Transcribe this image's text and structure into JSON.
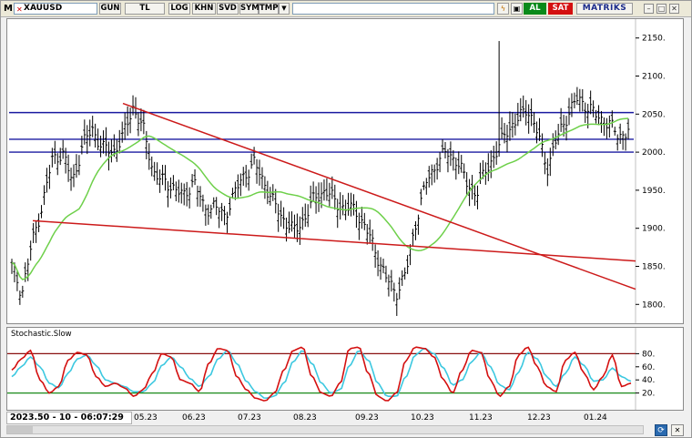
{
  "toolbar": {
    "m_label": "M",
    "symbol": "XAUUSD",
    "buttons": [
      "GUN",
      "TL",
      "LOG",
      "KHN",
      "SVD",
      "SYM",
      "TMP"
    ],
    "al_label": "AL",
    "sat_label": "SAT",
    "brand": "MATRIKS"
  },
  "main_axis": {
    "ticks": [
      2150,
      2100,
      2050,
      2000,
      1950,
      1900,
      1850,
      1800
    ]
  },
  "stoch": {
    "title": "Stochastic.Slow",
    "ticks": [
      80,
      60,
      40,
      20
    ]
  },
  "status": {
    "timestamp": "2023.50 - 10 - 06:07:29"
  },
  "x_axis": {
    "labels": [
      "05.23",
      "06.23",
      "07.23",
      "08.23",
      "09.23",
      "10.23",
      "11.23",
      "12.23",
      "01.24"
    ]
  },
  "colors": {
    "candle": "#000000",
    "ma": "#6ed04a",
    "trend": "#cc1a1a",
    "hline": "#1a1aa0",
    "stoch_k": "#d41010",
    "stoch_d": "#3cc8e0",
    "stoch_upper": "#8a1010",
    "stoch_lower": "#1a8a1a"
  },
  "chart_data": [
    {
      "type": "candlestick",
      "series_name": "XAUUSD",
      "ylim": [
        1780,
        2170
      ],
      "horizontal_levels": [
        2052,
        2017,
        2000
      ],
      "x": [
        "05.23",
        "06.23",
        "07.23",
        "08.23",
        "09.23",
        "10.23",
        "11.23",
        "12.23",
        "01.24"
      ],
      "close_path": [
        1850,
        1815,
        1880,
        1930,
        1990,
        2000,
        1960,
        2010,
        2030,
        2005,
        2000,
        2020,
        2060,
        2030,
        1975,
        1960,
        1955,
        1940,
        1965,
        1925,
        1930,
        1915,
        1945,
        1970,
        1985,
        1960,
        1930,
        1910,
        1895,
        1915,
        1940,
        1950,
        1935,
        1925,
        1925,
        1900,
        1870,
        1835,
        1815,
        1840,
        1910,
        1960,
        1985,
        2000,
        1990,
        1960,
        1945,
        1980,
        2000,
        2030,
        2040,
        2060,
        2025,
        1980,
        2020,
        2050,
        2070,
        2060,
        2045,
        2040,
        2020,
        2030
      ]
    },
    {
      "type": "line",
      "series_name": "Stochastic.Slow",
      "ylim": [
        0,
        100
      ],
      "levels": [
        80,
        20
      ],
      "k": [
        55,
        72,
        85,
        40,
        20,
        30,
        70,
        82,
        78,
        45,
        30,
        35,
        28,
        15,
        25,
        50,
        80,
        75,
        40,
        35,
        22,
        65,
        88,
        85,
        45,
        25,
        12,
        8,
        20,
        55,
        85,
        90,
        45,
        20,
        15,
        35,
        88,
        90,
        50,
        15,
        8,
        20,
        70,
        90,
        88,
        75,
        40,
        20,
        55,
        85,
        82,
        40,
        15,
        30,
        78,
        90,
        60,
        30,
        22,
        70,
        82,
        50,
        25,
        45,
        78,
        30,
        35
      ],
      "d": [
        45,
        60,
        75,
        60,
        35,
        28,
        50,
        72,
        78,
        62,
        40,
        35,
        30,
        22,
        22,
        35,
        62,
        75,
        60,
        42,
        30,
        45,
        72,
        85,
        65,
        38,
        22,
        12,
        15,
        35,
        68,
        85,
        65,
        35,
        20,
        25,
        62,
        85,
        70,
        35,
        15,
        15,
        45,
        78,
        88,
        80,
        58,
        32,
        40,
        68,
        82,
        60,
        32,
        25,
        52,
        82,
        72,
        45,
        30,
        50,
        75,
        62,
        38,
        40,
        58,
        45,
        38
      ]
    }
  ]
}
